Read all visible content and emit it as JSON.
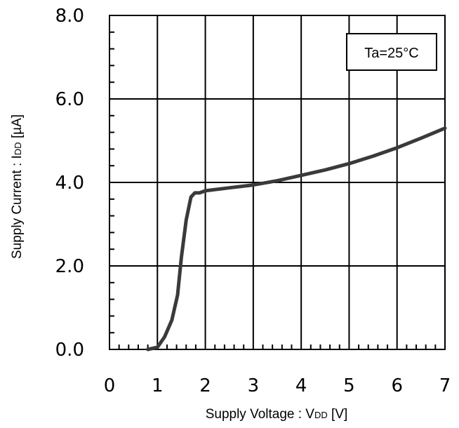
{
  "chart_data": {
    "type": "line",
    "title": "",
    "xlabel": {
      "prefix": "Supply Voltage : V",
      "sub": "DD",
      "suffix": " [V]"
    },
    "ylabel": {
      "prefix": "Supply Current : I",
      "sub": "DD",
      "suffix": " [µA]"
    },
    "xlim": [
      0,
      7
    ],
    "ylim": [
      0,
      8
    ],
    "x_ticks": [
      "0",
      "1",
      "2",
      "3",
      "4",
      "5",
      "6",
      "7"
    ],
    "y_ticks": [
      "0.0",
      "2.0",
      "4.0",
      "6.0",
      "8.0"
    ],
    "grid": true,
    "annotation": "Ta=25°C",
    "annotation_position": "top-right",
    "series": [
      {
        "color": "#3a3a3a",
        "x": [
          0.8,
          1.0,
          1.15,
          1.3,
          1.42,
          1.5,
          1.6,
          1.7,
          1.78,
          1.88,
          2.0,
          2.5,
          3.0,
          3.5,
          4.0,
          4.5,
          5.0,
          5.5,
          6.0,
          6.5,
          7.0
        ],
        "y": [
          0.0,
          0.05,
          0.3,
          0.7,
          1.3,
          2.2,
          3.1,
          3.65,
          3.75,
          3.75,
          3.8,
          3.87,
          3.94,
          4.04,
          4.17,
          4.3,
          4.45,
          4.63,
          4.83,
          5.06,
          5.3
        ]
      }
    ]
  }
}
